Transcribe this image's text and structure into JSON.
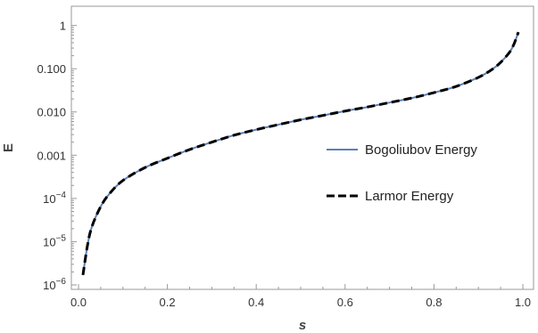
{
  "chart_data": {
    "type": "line",
    "xlabel": "s",
    "ylabel": "E",
    "xlim": [
      0.0,
      1.0
    ],
    "ylim": [
      1e-06,
      2.0
    ],
    "yscale": "log",
    "grid": false,
    "legend_position": "right",
    "x_ticks": [
      {
        "value": 0.0,
        "label": "0.0"
      },
      {
        "value": 0.2,
        "label": "0.2"
      },
      {
        "value": 0.4,
        "label": "0.4"
      },
      {
        "value": 0.6,
        "label": "0.6"
      },
      {
        "value": 0.8,
        "label": "0.8"
      },
      {
        "value": 1.0,
        "label": "1.0"
      }
    ],
    "y_ticks": [
      {
        "value": 1e-06,
        "base": "10",
        "exp": "−6",
        "label": ""
      },
      {
        "value": 1e-05,
        "base": "10",
        "exp": "−5",
        "label": ""
      },
      {
        "value": 0.0001,
        "base": "10",
        "exp": "−4",
        "label": ""
      },
      {
        "value": 0.001,
        "label": "0.001"
      },
      {
        "value": 0.01,
        "label": "0.010"
      },
      {
        "value": 0.1,
        "label": "0.100"
      },
      {
        "value": 1,
        "label": "1"
      }
    ],
    "x": [
      0.01,
      0.02,
      0.03,
      0.05,
      0.07,
      0.1,
      0.15,
      0.2,
      0.25,
      0.3,
      0.35,
      0.4,
      0.45,
      0.5,
      0.55,
      0.6,
      0.65,
      0.7,
      0.75,
      0.8,
      0.85,
      0.9,
      0.93,
      0.95,
      0.97,
      0.98,
      0.99
    ],
    "series": [
      {
        "name": "Bogoliubov Energy",
        "color": "#5b7fb8",
        "style": "solid",
        "values": [
          1.7e-06,
          8e-06,
          2.2e-05,
          6.5e-05,
          0.00013,
          0.00026,
          0.00052,
          0.00085,
          0.00135,
          0.002,
          0.0029,
          0.0039,
          0.0051,
          0.0066,
          0.0083,
          0.0105,
          0.013,
          0.0165,
          0.021,
          0.028,
          0.039,
          0.063,
          0.095,
          0.14,
          0.24,
          0.37,
          0.7
        ]
      },
      {
        "name": "Larmor Energy",
        "color": "#000000",
        "style": "dashed",
        "values": [
          1.7e-06,
          8e-06,
          2.2e-05,
          6.5e-05,
          0.00013,
          0.00026,
          0.00052,
          0.00085,
          0.00135,
          0.002,
          0.0029,
          0.0039,
          0.0051,
          0.0066,
          0.0083,
          0.0105,
          0.013,
          0.0165,
          0.021,
          0.028,
          0.039,
          0.063,
          0.095,
          0.14,
          0.24,
          0.37,
          0.7
        ]
      }
    ]
  }
}
